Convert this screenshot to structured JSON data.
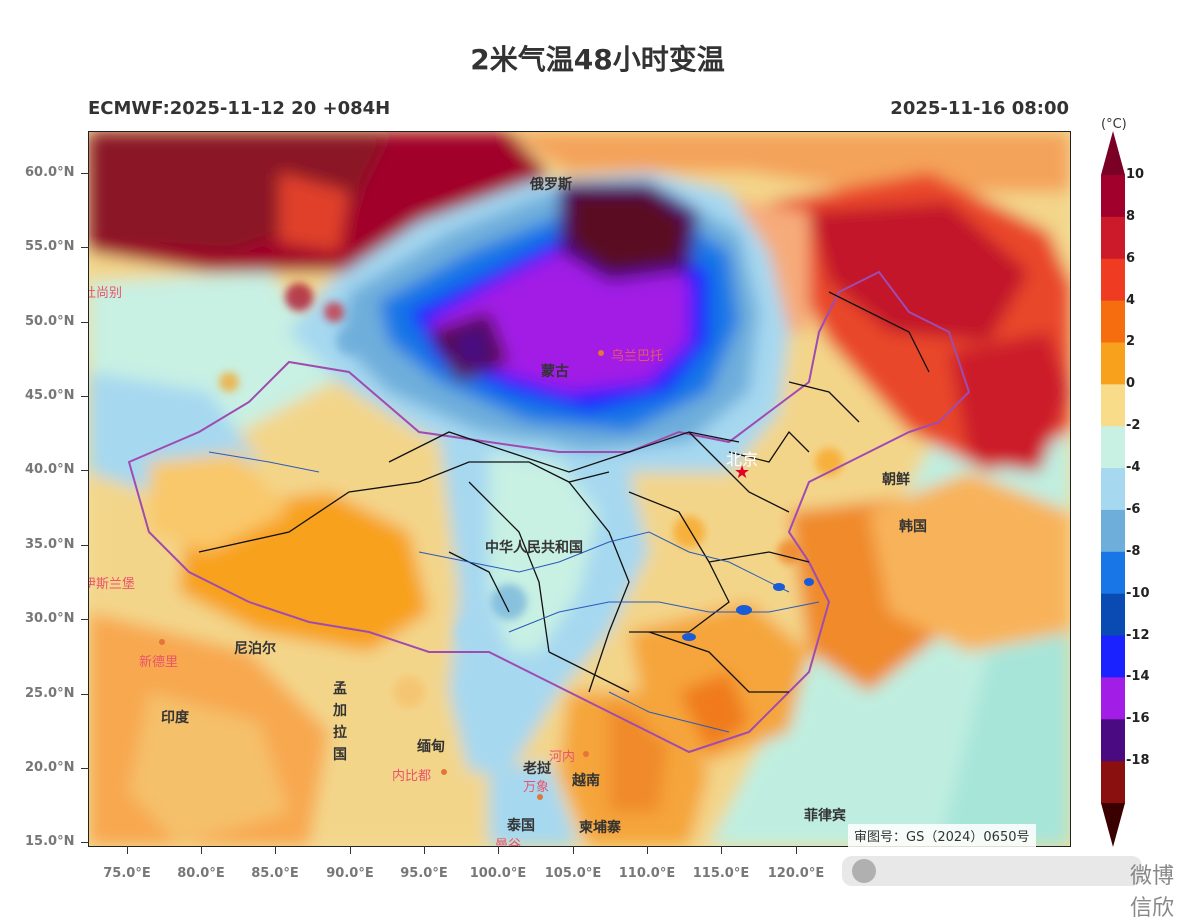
{
  "header": {
    "title": "2米气温48小时变温",
    "model_run": "ECMWF:2025-11-12 20 +084H",
    "valid_time": "2025-11-16 08:00"
  },
  "axes": {
    "lat_ticks": [
      "60.0°N",
      "55.0°N",
      "50.0°N",
      "45.0°N",
      "40.0°N",
      "35.0°N",
      "30.0°N",
      "25.0°N",
      "20.0°N",
      "15.0°N"
    ],
    "lon_ticks": [
      "75.0°E",
      "80.0°E",
      "85.0°E",
      "90.0°E",
      "95.0°E",
      "100.0°E",
      "105.0°E",
      "110.0°E",
      "115.0°E",
      "120.0°E"
    ]
  },
  "legend": {
    "unit": "(°C)",
    "labels": [
      "10",
      "8",
      "6",
      "4",
      "2",
      "0",
      "-2",
      "-4",
      "-6",
      "-8",
      "-10",
      "-12",
      "-14",
      "-16",
      "-18"
    ],
    "colors": [
      "#a1002c",
      "#cc1a2b",
      "#ee3b22",
      "#f56d0f",
      "#f8a11c",
      "#f9dc8a",
      "#c8f0e3",
      "#a6d8f0",
      "#6eaedb",
      "#1876e6",
      "#0a4bb3",
      "#1a23ff",
      "#a21ee6",
      "#4a0b82",
      "#8a1010"
    ],
    "top_color": "#7a0026",
    "bottom_color": "#3a0000"
  },
  "map_labels": {
    "countries": [
      "俄罗斯",
      "蒙古",
      "中华人民共和国",
      "朝鲜",
      "韩国",
      "尼泊尔",
      "印度",
      "孟加拉国",
      "缅甸",
      "老挝",
      "越南",
      "泰国",
      "柬埔寨",
      "菲律宾"
    ],
    "cities": [
      "乌兰巴托",
      "北京",
      "新德里",
      "内比都",
      "河内",
      "万象",
      "曼谷",
      "伊斯兰堡",
      "杜尚别"
    ]
  },
  "stamp": "审图号：GS（2024）0650号",
  "watermark": "微博 信欣"
}
